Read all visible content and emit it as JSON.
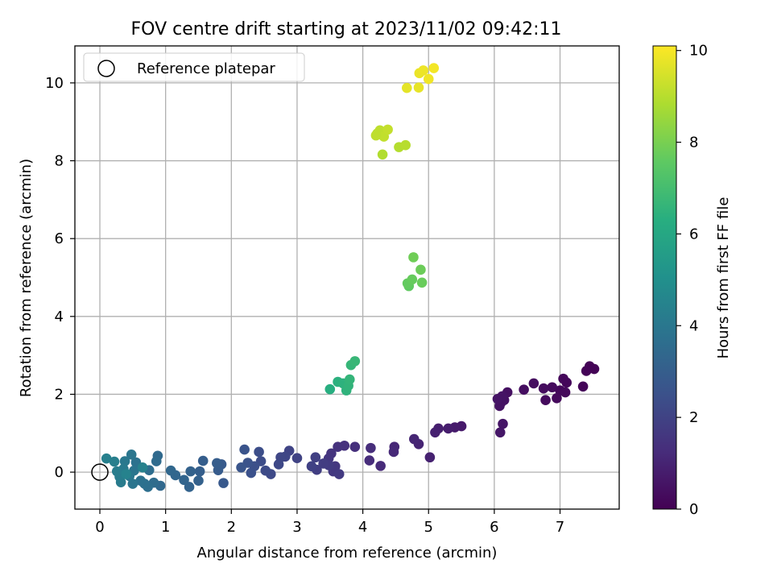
{
  "chart_data": {
    "type": "scatter",
    "title": "FOV centre drift starting at 2023/11/02 09:42:11",
    "xlabel": "Angular distance from reference (arcmin)",
    "ylabel": "Rotation from reference (arcmin)",
    "xlim": [
      -0.38,
      7.9
    ],
    "ylim": [
      -0.95,
      10.95
    ],
    "x_ticks": [
      0,
      1,
      2,
      3,
      4,
      5,
      6,
      7
    ],
    "y_ticks": [
      0,
      2,
      4,
      6,
      8,
      10
    ],
    "grid": true,
    "colormap": "viridis",
    "colorbar": {
      "label": "Hours from first FF file",
      "range": [
        0,
        10.1
      ],
      "ticks": [
        0,
        2,
        4,
        6,
        8,
        10
      ]
    },
    "legend": {
      "position": "top-left",
      "entries": [
        "Reference platepar"
      ]
    },
    "reference_point": {
      "x": 0,
      "y": 0
    },
    "points": [
      {
        "x": 7.45,
        "y": 2.72,
        "h": 0.05
      },
      {
        "x": 7.52,
        "y": 2.65,
        "h": 0.08
      },
      {
        "x": 7.4,
        "y": 2.6,
        "h": 0.1
      },
      {
        "x": 7.35,
        "y": 2.2,
        "h": 0.12
      },
      {
        "x": 7.1,
        "y": 2.3,
        "h": 0.15
      },
      {
        "x": 7.05,
        "y": 2.4,
        "h": 0.18
      },
      {
        "x": 7.0,
        "y": 2.1,
        "h": 0.2
      },
      {
        "x": 7.08,
        "y": 2.05,
        "h": 0.22
      },
      {
        "x": 6.95,
        "y": 1.9,
        "h": 0.25
      },
      {
        "x": 6.88,
        "y": 2.18,
        "h": 0.28
      },
      {
        "x": 6.78,
        "y": 1.85,
        "h": 0.3
      },
      {
        "x": 6.75,
        "y": 2.15,
        "h": 0.32
      },
      {
        "x": 6.6,
        "y": 2.28,
        "h": 0.35
      },
      {
        "x": 6.45,
        "y": 2.12,
        "h": 0.38
      },
      {
        "x": 6.2,
        "y": 2.05,
        "h": 0.42
      },
      {
        "x": 6.15,
        "y": 1.85,
        "h": 0.45
      },
      {
        "x": 6.1,
        "y": 1.78,
        "h": 0.48
      },
      {
        "x": 6.08,
        "y": 1.7,
        "h": 0.5
      },
      {
        "x": 6.12,
        "y": 1.95,
        "h": 0.52
      },
      {
        "x": 6.05,
        "y": 1.88,
        "h": 0.55
      },
      {
        "x": 6.13,
        "y": 1.24,
        "h": 0.58
      },
      {
        "x": 6.09,
        "y": 1.02,
        "h": 0.6
      },
      {
        "x": 5.5,
        "y": 1.18,
        "h": 0.7
      },
      {
        "x": 5.4,
        "y": 1.15,
        "h": 0.75
      },
      {
        "x": 5.3,
        "y": 1.12,
        "h": 0.8
      },
      {
        "x": 5.15,
        "y": 1.12,
        "h": 0.85
      },
      {
        "x": 5.1,
        "y": 1.02,
        "h": 0.9
      },
      {
        "x": 5.02,
        "y": 0.38,
        "h": 0.95
      },
      {
        "x": 4.85,
        "y": 0.72,
        "h": 1.0
      },
      {
        "x": 4.78,
        "y": 0.85,
        "h": 1.05
      },
      {
        "x": 4.48,
        "y": 0.65,
        "h": 1.1
      },
      {
        "x": 4.47,
        "y": 0.52,
        "h": 1.15
      },
      {
        "x": 4.27,
        "y": 0.16,
        "h": 1.2
      },
      {
        "x": 4.1,
        "y": 0.3,
        "h": 1.25
      },
      {
        "x": 4.12,
        "y": 0.62,
        "h": 1.3
      },
      {
        "x": 3.88,
        "y": 0.65,
        "h": 1.35
      },
      {
        "x": 3.72,
        "y": 0.68,
        "h": 1.4
      },
      {
        "x": 3.62,
        "y": 0.65,
        "h": 1.45
      },
      {
        "x": 3.52,
        "y": 0.48,
        "h": 1.5
      },
      {
        "x": 3.48,
        "y": 0.35,
        "h": 1.55
      },
      {
        "x": 3.58,
        "y": 0.15,
        "h": 1.6
      },
      {
        "x": 3.55,
        "y": 0.02,
        "h": 1.65
      },
      {
        "x": 3.64,
        "y": -0.05,
        "h": 1.7
      },
      {
        "x": 3.48,
        "y": 0.18,
        "h": 1.75
      },
      {
        "x": 3.4,
        "y": 0.22,
        "h": 1.8
      },
      {
        "x": 3.3,
        "y": 0.06,
        "h": 1.85
      },
      {
        "x": 3.28,
        "y": 0.38,
        "h": 1.9
      },
      {
        "x": 3.22,
        "y": 0.15,
        "h": 1.95
      },
      {
        "x": 3.0,
        "y": 0.36,
        "h": 2.0
      },
      {
        "x": 2.88,
        "y": 0.55,
        "h": 2.05
      },
      {
        "x": 2.82,
        "y": 0.4,
        "h": 2.1
      },
      {
        "x": 2.75,
        "y": 0.38,
        "h": 2.15
      },
      {
        "x": 2.72,
        "y": 0.2,
        "h": 2.2
      },
      {
        "x": 2.6,
        "y": -0.05,
        "h": 2.25
      },
      {
        "x": 2.52,
        "y": 0.04,
        "h": 2.3
      },
      {
        "x": 2.45,
        "y": 0.28,
        "h": 2.35
      },
      {
        "x": 2.42,
        "y": 0.52,
        "h": 2.4
      },
      {
        "x": 2.35,
        "y": 0.15,
        "h": 2.45
      },
      {
        "x": 2.3,
        "y": -0.02,
        "h": 2.5
      },
      {
        "x": 2.25,
        "y": 0.24,
        "h": 2.55
      },
      {
        "x": 2.2,
        "y": 0.58,
        "h": 2.6
      },
      {
        "x": 2.15,
        "y": 0.12,
        "h": 2.65
      },
      {
        "x": 1.88,
        "y": -0.28,
        "h": 2.8
      },
      {
        "x": 1.85,
        "y": 0.2,
        "h": 2.85
      },
      {
        "x": 1.8,
        "y": 0.05,
        "h": 2.9
      },
      {
        "x": 1.78,
        "y": 0.23,
        "h": 2.95
      },
      {
        "x": 1.57,
        "y": 0.29,
        "h": 3.0
      },
      {
        "x": 1.52,
        "y": 0.02,
        "h": 3.05
      },
      {
        "x": 1.5,
        "y": -0.22,
        "h": 3.1
      },
      {
        "x": 1.38,
        "y": 0.02,
        "h": 3.15
      },
      {
        "x": 1.36,
        "y": -0.38,
        "h": 3.2
      },
      {
        "x": 1.28,
        "y": -0.2,
        "h": 3.25
      },
      {
        "x": 1.15,
        "y": -0.08,
        "h": 3.3
      },
      {
        "x": 1.08,
        "y": 0.04,
        "h": 3.35
      },
      {
        "x": 0.92,
        "y": -0.35,
        "h": 3.4
      },
      {
        "x": 0.88,
        "y": 0.42,
        "h": 3.45
      },
      {
        "x": 0.86,
        "y": 0.28,
        "h": 3.5
      },
      {
        "x": 0.82,
        "y": -0.27,
        "h": 3.55
      },
      {
        "x": 0.75,
        "y": 0.05,
        "h": 3.6
      },
      {
        "x": 0.73,
        "y": -0.38,
        "h": 3.65
      },
      {
        "x": 0.68,
        "y": -0.3,
        "h": 3.7
      },
      {
        "x": 0.62,
        "y": -0.22,
        "h": 3.75
      },
      {
        "x": 0.55,
        "y": 0.25,
        "h": 3.8
      },
      {
        "x": 0.52,
        "y": 0.04,
        "h": 3.85
      },
      {
        "x": 0.5,
        "y": -0.3,
        "h": 3.9
      },
      {
        "x": 0.48,
        "y": 0.45,
        "h": 3.95
      },
      {
        "x": 0.45,
        "y": -0.1,
        "h": 4.0
      },
      {
        "x": 0.38,
        "y": 0.28,
        "h": 4.05
      },
      {
        "x": 0.36,
        "y": 0.08,
        "h": 4.1
      },
      {
        "x": 0.32,
        "y": -0.26,
        "h": 4.15
      },
      {
        "x": 0.3,
        "y": -0.12,
        "h": 4.2
      },
      {
        "x": 0.26,
        "y": 0.02,
        "h": 4.25
      },
      {
        "x": 0.22,
        "y": 0.27,
        "h": 4.3
      },
      {
        "x": 0.1,
        "y": 0.35,
        "h": 4.35
      },
      {
        "x": 0.65,
        "y": 0.12,
        "h": 4.4
      },
      {
        "x": 0.4,
        "y": -0.05,
        "h": 4.45
      },
      {
        "x": 3.5,
        "y": 2.13,
        "h": 6.3
      },
      {
        "x": 3.62,
        "y": 2.32,
        "h": 6.4
      },
      {
        "x": 3.7,
        "y": 2.28,
        "h": 6.45
      },
      {
        "x": 3.75,
        "y": 2.1,
        "h": 6.5
      },
      {
        "x": 3.78,
        "y": 2.22,
        "h": 6.55
      },
      {
        "x": 3.8,
        "y": 2.38,
        "h": 6.6
      },
      {
        "x": 3.82,
        "y": 2.75,
        "h": 6.65
      },
      {
        "x": 3.88,
        "y": 2.85,
        "h": 6.7
      },
      {
        "x": 4.7,
        "y": 4.78,
        "h": 7.6
      },
      {
        "x": 4.68,
        "y": 4.85,
        "h": 7.65
      },
      {
        "x": 4.75,
        "y": 4.95,
        "h": 7.7
      },
      {
        "x": 4.9,
        "y": 4.87,
        "h": 7.75
      },
      {
        "x": 4.88,
        "y": 5.2,
        "h": 7.8
      },
      {
        "x": 4.77,
        "y": 5.52,
        "h": 7.85
      },
      {
        "x": 4.3,
        "y": 8.16,
        "h": 8.9
      },
      {
        "x": 4.55,
        "y": 8.35,
        "h": 8.95
      },
      {
        "x": 4.65,
        "y": 8.4,
        "h": 9.0
      },
      {
        "x": 4.22,
        "y": 8.7,
        "h": 9.05
      },
      {
        "x": 4.26,
        "y": 8.78,
        "h": 9.1
      },
      {
        "x": 4.32,
        "y": 8.62,
        "h": 9.15
      },
      {
        "x": 4.38,
        "y": 8.8,
        "h": 9.2
      },
      {
        "x": 4.2,
        "y": 8.65,
        "h": 9.1
      },
      {
        "x": 4.67,
        "y": 9.87,
        "h": 9.7
      },
      {
        "x": 4.85,
        "y": 9.88,
        "h": 9.75
      },
      {
        "x": 4.86,
        "y": 10.25,
        "h": 9.8
      },
      {
        "x": 4.92,
        "y": 10.32,
        "h": 9.85
      },
      {
        "x": 5.0,
        "y": 10.1,
        "h": 9.9
      },
      {
        "x": 5.08,
        "y": 10.38,
        "h": 9.95
      }
    ]
  }
}
